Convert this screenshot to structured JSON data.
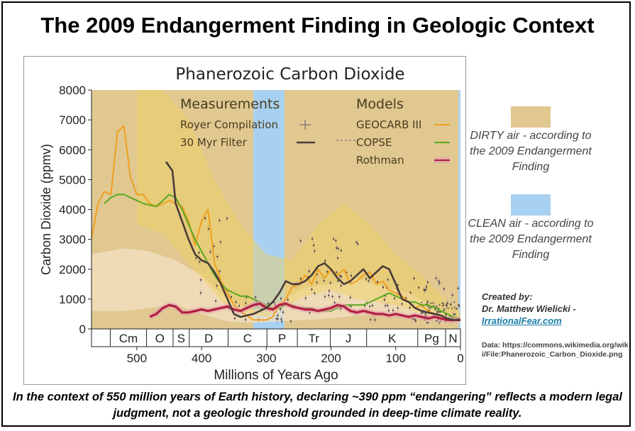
{
  "header": {
    "title": "The 2009 Endangerment Finding in Geologic Context"
  },
  "chart_data": {
    "type": "line",
    "title": "Phanerozoic Carbon Dioxide",
    "xlabel": "Millions of Years Ago",
    "ylabel": "Carbon Dioxide (ppmv)",
    "xlim": [
      570,
      0
    ],
    "ylim": [
      0,
      8000
    ],
    "x_ticks": [
      500,
      400,
      300,
      200,
      100,
      0
    ],
    "y_ticks": [
      0,
      1000,
      2000,
      3000,
      4000,
      5000,
      6000,
      7000,
      8000
    ],
    "periods": [
      {
        "label": "Cm",
        "start": 541,
        "end": 485
      },
      {
        "label": "O",
        "start": 485,
        "end": 444
      },
      {
        "label": "S",
        "start": 444,
        "end": 419
      },
      {
        "label": "D",
        "start": 419,
        "end": 359
      },
      {
        "label": "C",
        "start": 359,
        "end": 299
      },
      {
        "label": "P",
        "start": 299,
        "end": 252
      },
      {
        "label": "Tr",
        "start": 252,
        "end": 201
      },
      {
        "label": "J",
        "start": 201,
        "end": 145
      },
      {
        "label": "K",
        "start": 145,
        "end": 66
      },
      {
        "label": "Pg",
        "start": 66,
        "end": 23
      },
      {
        "label": "N",
        "start": 23,
        "end": 0
      }
    ],
    "legend_headers": {
      "measurements": "Measurements",
      "models": "Models"
    },
    "series": [
      {
        "name": "GEOCARB III",
        "color": "#f0a020",
        "x": [
          570,
          560,
          550,
          540,
          530,
          520,
          510,
          500,
          490,
          480,
          470,
          460,
          450,
          440,
          430,
          420,
          410,
          400,
          390,
          380,
          370,
          360,
          350,
          340,
          330,
          320,
          310,
          300,
          290,
          280,
          270,
          260,
          250,
          240,
          230,
          220,
          210,
          200,
          190,
          180,
          170,
          160,
          150,
          140,
          130,
          120,
          110,
          100,
          90,
          80,
          70,
          60,
          50,
          40,
          30,
          20,
          10,
          0
        ],
        "values": [
          3000,
          4200,
          4600,
          4500,
          6600,
          6800,
          5100,
          4500,
          4500,
          4200,
          4100,
          4200,
          4300,
          4200,
          4100,
          3600,
          2800,
          3600,
          4000,
          2200,
          1600,
          1200,
          800,
          600,
          450,
          300,
          300,
          300,
          400,
          800,
          1000,
          1400,
          1500,
          1800,
          1500,
          2000,
          1700,
          2000,
          1800,
          2000,
          1500,
          1600,
          1800,
          1900,
          1500,
          1600,
          1300,
          1200,
          1100,
          900,
          700,
          800,
          600,
          500,
          400,
          300,
          280,
          280
        ]
      },
      {
        "name": "COPSE",
        "color": "#5aa820",
        "x": [
          550,
          540,
          530,
          520,
          510,
          500,
          490,
          480,
          470,
          460,
          450,
          440,
          430,
          420,
          410,
          400,
          390,
          380,
          370,
          360,
          350,
          340,
          330,
          320,
          310,
          300,
          290,
          280,
          270,
          260,
          250,
          240,
          230,
          220,
          210,
          200,
          190,
          180,
          170,
          160,
          150,
          140,
          130,
          120,
          110,
          100,
          90,
          80,
          70,
          60,
          50,
          40,
          30,
          20,
          10,
          0
        ],
        "values": [
          4200,
          4400,
          4500,
          4500,
          4400,
          4300,
          4200,
          4150,
          4100,
          4300,
          4500,
          4400,
          4000,
          3500,
          3000,
          2600,
          2200,
          1800,
          1500,
          1300,
          1200,
          1100,
          1100,
          1000,
          900,
          800,
          700,
          700,
          800,
          800,
          700,
          700,
          700,
          600,
          600,
          600,
          700,
          800,
          800,
          800,
          800,
          900,
          1000,
          1100,
          1200,
          1100,
          1000,
          900,
          900,
          800,
          800,
          700,
          600,
          500,
          400,
          350
        ]
      },
      {
        "name": "Rothman",
        "color": "#b02040",
        "x": [
          480,
          470,
          460,
          450,
          440,
          430,
          420,
          410,
          400,
          390,
          380,
          370,
          360,
          350,
          340,
          330,
          320,
          310,
          300,
          290,
          280,
          270,
          260,
          250,
          240,
          230,
          220,
          210,
          200,
          190,
          180,
          170,
          160,
          150,
          140,
          130,
          120,
          110,
          100,
          90,
          80,
          70,
          60,
          50,
          40,
          30,
          20,
          10,
          0
        ],
        "values": [
          400,
          500,
          700,
          800,
          750,
          550,
          550,
          600,
          650,
          600,
          650,
          700,
          750,
          650,
          600,
          700,
          800,
          850,
          700,
          650,
          800,
          850,
          750,
          700,
          650,
          650,
          600,
          650,
          700,
          800,
          750,
          600,
          550,
          600,
          550,
          500,
          500,
          450,
          500,
          450,
          400,
          450,
          400,
          350,
          400,
          350,
          300,
          300,
          300
        ]
      },
      {
        "name": "30 Myr Filter",
        "color": "#4a3c38",
        "x": [
          455,
          445,
          440,
          430,
          420,
          410,
          400,
          390,
          380,
          370,
          360,
          350,
          340,
          330,
          320,
          310,
          300,
          290,
          280,
          270,
          260,
          250,
          240,
          230,
          220,
          210,
          200,
          190,
          180,
          170,
          160,
          150,
          140,
          130,
          120,
          110,
          100,
          90,
          80,
          70,
          60,
          50,
          40,
          30,
          20,
          10,
          0
        ],
        "values": [
          5600,
          5300,
          4200,
          3600,
          3000,
          2500,
          2300,
          2200,
          1900,
          1500,
          1000,
          500,
          400,
          450,
          500,
          600,
          700,
          900,
          1200,
          1600,
          1500,
          1500,
          1600,
          1800,
          2100,
          2200,
          2000,
          1700,
          1500,
          1600,
          1800,
          2000,
          1700,
          1900,
          2100,
          2000,
          1500,
          1000,
          900,
          700,
          600,
          550,
          500,
          450,
          350,
          300,
          300
        ]
      }
    ]
  },
  "measurements_legend": {
    "royer": "Royer Compilation",
    "filter": "30 Myr Filter"
  },
  "models_legend": {
    "geocarb": "GEOCARB III",
    "copse": "COPSE",
    "rothman": "Rothman"
  },
  "side_legend": {
    "dirty": {
      "label": "DIRTY air - according to the 2009 Endangerment Finding",
      "color": "#e0c890"
    },
    "clean": {
      "label": "CLEAN air - according to the 2009 Endangerment Finding",
      "color": "#a8d0f0"
    }
  },
  "credit": {
    "created_by": "Created by:",
    "author": "Dr. Matthew Wielicki -",
    "site": "IrrationalFear.com"
  },
  "data_source": {
    "text": "Data: https://commons.wikimedia.org/wiki/File:Phanerozoic_Carbon_Dioxide.png"
  },
  "caption": {
    "text": "In the context of 550 million years of Earth history, declaring ~390 ppm “endangering” reflects a modern legal judgment, not a geologic threshold grounded in deep-time climate reality."
  }
}
